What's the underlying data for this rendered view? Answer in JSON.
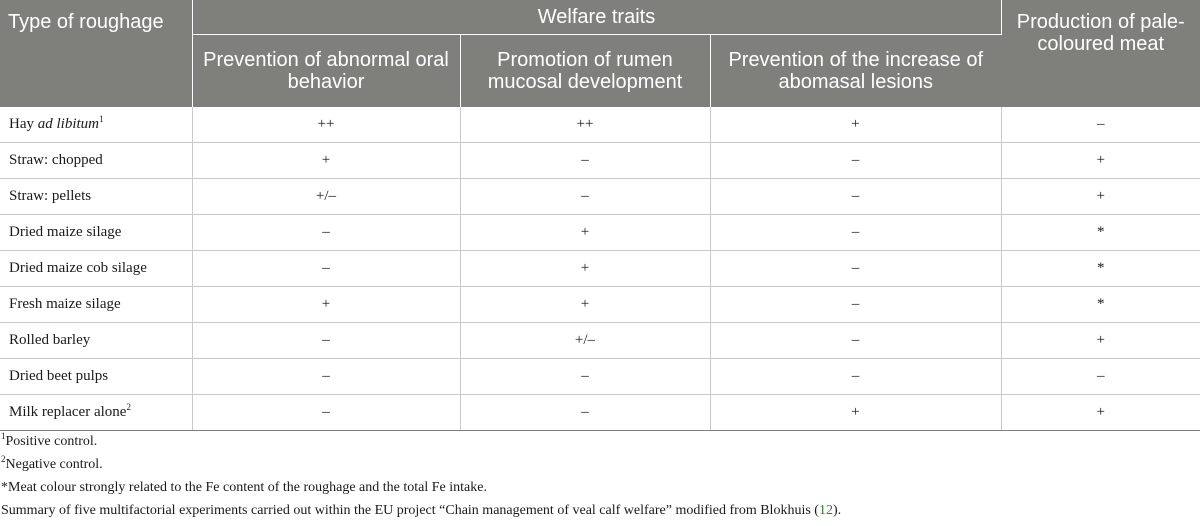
{
  "header": {
    "type_col": "Type of roughage",
    "welfare_group": "Welfare traits",
    "production_col": "Production of pale-coloured meat",
    "welfare_subcols": [
      "Prevention of abnormal oral behavior",
      "Promotion of rumen mucosal development",
      "Prevention of the increase of abomasal lesions"
    ]
  },
  "rows": [
    {
      "name_prefix": "Hay ",
      "name_italic": "ad libitum",
      "name_sup": "1",
      "oral": "++",
      "rumen": "++",
      "abomasal": "+",
      "pale_meat": "–"
    },
    {
      "name_prefix": "Straw: chopped",
      "name_italic": "",
      "name_sup": "",
      "oral": "+",
      "rumen": "–",
      "abomasal": "–",
      "pale_meat": "+"
    },
    {
      "name_prefix": "Straw: pellets",
      "name_italic": "",
      "name_sup": "",
      "oral": "+/–",
      "rumen": "–",
      "abomasal": "–",
      "pale_meat": "+"
    },
    {
      "name_prefix": "Dried maize silage",
      "name_italic": "",
      "name_sup": "",
      "oral": "–",
      "rumen": "+",
      "abomasal": "–",
      "pale_meat": "*"
    },
    {
      "name_prefix": "Dried maize cob silage",
      "name_italic": "",
      "name_sup": "",
      "oral": "–",
      "rumen": "+",
      "abomasal": "–",
      "pale_meat": "*"
    },
    {
      "name_prefix": "Fresh maize silage",
      "name_italic": "",
      "name_sup": "",
      "oral": "+",
      "rumen": "+",
      "abomasal": "–",
      "pale_meat": "*"
    },
    {
      "name_prefix": "Rolled barley",
      "name_italic": "",
      "name_sup": "",
      "oral": "–",
      "rumen": "+/–",
      "abomasal": "–",
      "pale_meat": "+"
    },
    {
      "name_prefix": "Dried beet pulps",
      "name_italic": "",
      "name_sup": "",
      "oral": "–",
      "rumen": "–",
      "abomasal": "–",
      "pale_meat": "–"
    },
    {
      "name_prefix": "Milk replacer alone",
      "name_italic": "",
      "name_sup": "2",
      "oral": "–",
      "rumen": "–",
      "abomasal": "+",
      "pale_meat": "+"
    }
  ],
  "footnotes": {
    "note1_marker": "1",
    "note1_text": "Positive control.",
    "note2_marker": "2",
    "note2_text": "Negative control.",
    "note3_text": "*Meat colour strongly related to the Fe content of the roughage and the total Fe intake.",
    "summary_text": "Summary of five multifactorial experiments carried out within the EU project “Chain management of veal calf welfare” modified from Blokhuis (",
    "summary_ref": "12",
    "summary_end": ")."
  }
}
